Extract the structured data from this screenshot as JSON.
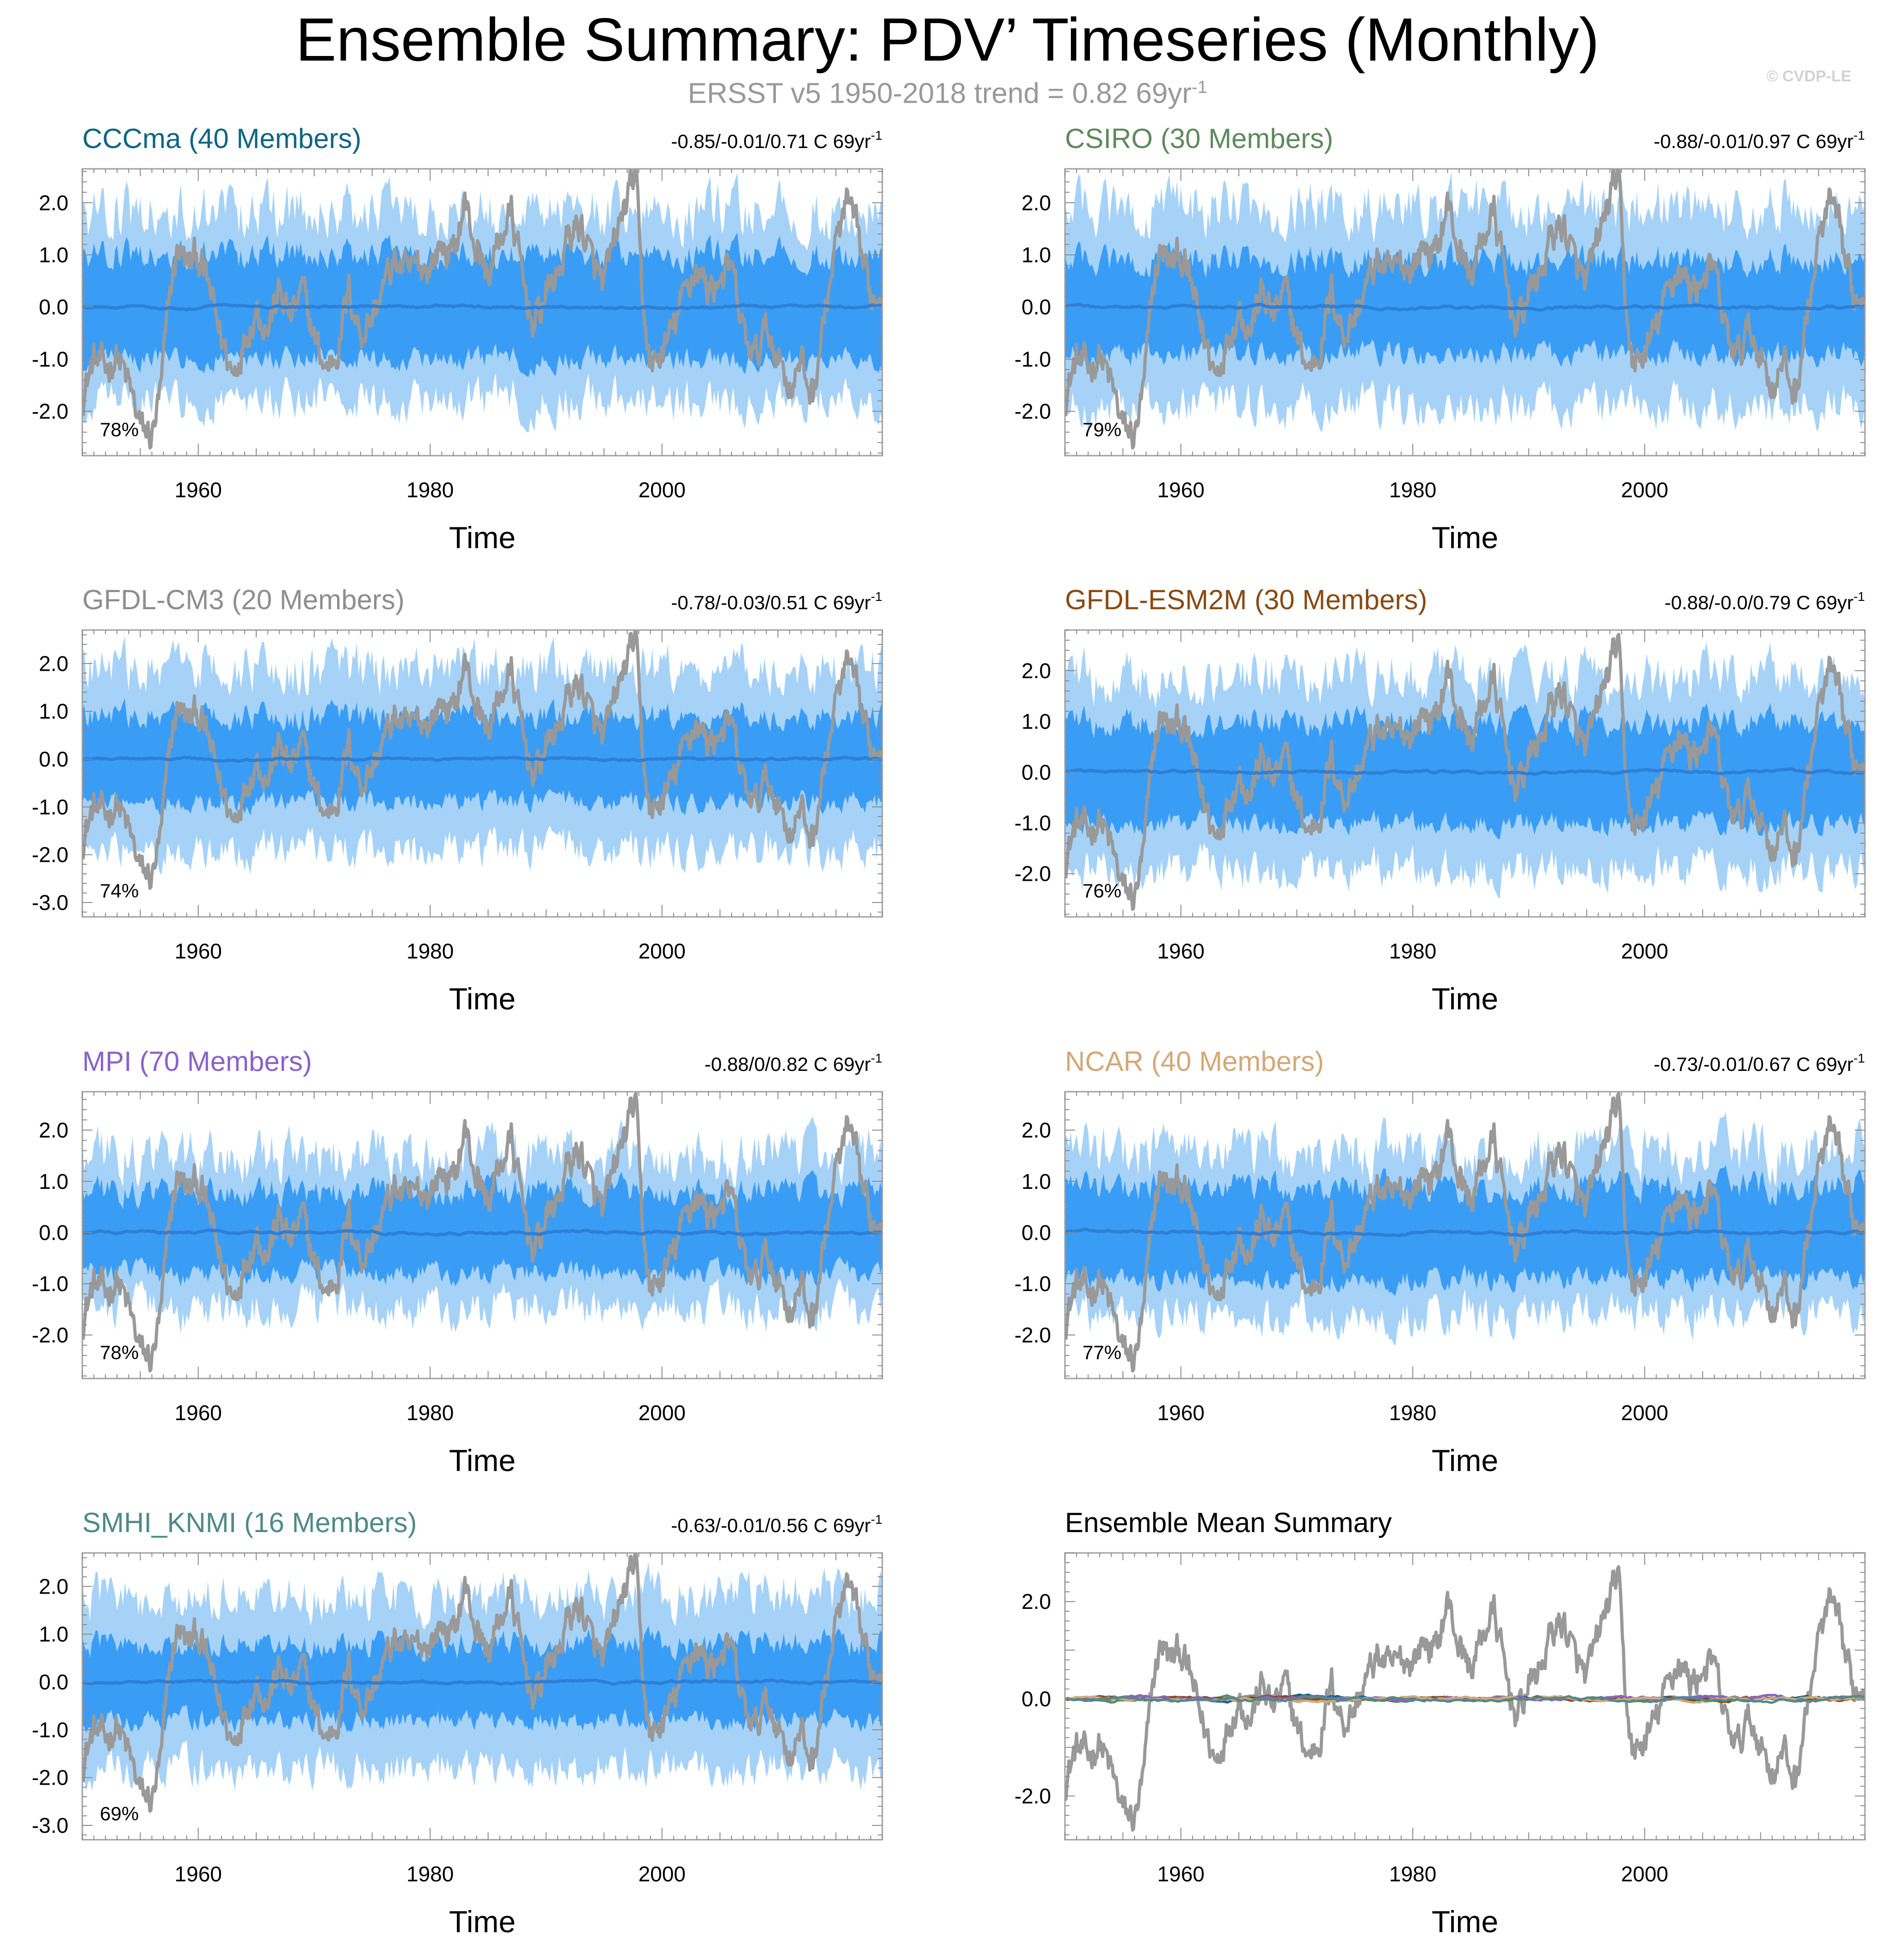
{
  "title": "Ensemble Summary: PDV’ Timeseries (Monthly)",
  "subtitle": {
    "text": "ERSST v5 1950-2018 trend = 0.82 69yr",
    "sup": "-1"
  },
  "copyright": "© CVDP-LE",
  "colors": {
    "observations": "#999999",
    "band_outer": "#a6d2f7",
    "band_inner": "#3a9df5",
    "ensemble_mean": "#2f7fd6"
  },
  "chart_data": [
    {
      "type": "area",
      "name": "CCCma (40 Members)",
      "title_color": "#0e6682",
      "stats": "-0.85/-0.01/0.71 C 69yr",
      "stats_sup": "-1",
      "percent": "78%",
      "xlabel": "Time",
      "xlim": [
        1950,
        2019
      ],
      "ylim": [
        -2.85,
        2.65
      ],
      "xticks": [
        "1960",
        "1980",
        "2000"
      ],
      "yticks": [
        "2.0",
        "1.0",
        "0.0",
        "-1.0",
        "-2.0"
      ],
      "band_inner": [
        -1.0,
        1.0
      ],
      "band_outer": [
        -1.8,
        1.8
      ]
    },
    {
      "type": "area",
      "name": "CSIRO (30 Members)",
      "title_color": "#5e8a5e",
      "stats": "-0.88/-0.01/0.97 C 69yr",
      "stats_sup": "-1",
      "percent": "79%",
      "xlabel": "Time",
      "xlim": [
        1950,
        2019
      ],
      "ylim": [
        -2.85,
        2.65
      ],
      "xticks": [
        "1960",
        "1980",
        "2000"
      ],
      "yticks": [
        "2.0",
        "1.0",
        "0.0",
        "-1.0",
        "-2.0"
      ],
      "band_inner": [
        -0.9,
        0.9
      ],
      "band_outer": [
        -1.9,
        1.9
      ]
    },
    {
      "type": "area",
      "name": "GFDL-CM3 (20 Members)",
      "title_color": "#8e8e8e",
      "stats": "-0.78/-0.03/0.51 C 69yr",
      "stats_sup": "-1",
      "percent": "74%",
      "xlabel": "Time",
      "xlim": [
        1950,
        2019
      ],
      "ylim": [
        -3.3,
        2.7
      ],
      "xticks": [
        "1960",
        "1980",
        "2000"
      ],
      "yticks": [
        "2.0",
        "1.0",
        "0.0",
        "-1.0",
        "-2.0",
        "-3.0"
      ],
      "band_inner": [
        -0.9,
        0.9
      ],
      "band_outer": [
        -1.9,
        1.9
      ]
    },
    {
      "type": "area",
      "name": "GFDL-ESM2M (30 Members)",
      "title_color": "#8a4a12",
      "stats": "-0.88/-0.0/0.79 C 69yr",
      "stats_sup": "-1",
      "percent": "76%",
      "xlabel": "Time",
      "xlim": [
        1950,
        2019
      ],
      "ylim": [
        -2.85,
        2.8
      ],
      "xticks": [
        "1960",
        "1980",
        "2000"
      ],
      "yticks": [
        "2.0",
        "1.0",
        "0.0",
        "-1.0",
        "-2.0"
      ],
      "band_inner": [
        -1.0,
        1.0
      ],
      "band_outer": [
        -1.9,
        1.9
      ]
    },
    {
      "type": "area",
      "name": "MPI (70 Members)",
      "title_color": "#8a62c8",
      "stats": "-0.88/0/0.82 C 69yr",
      "stats_sup": "-1",
      "percent": "78%",
      "xlabel": "Time",
      "xlim": [
        1950,
        2019
      ],
      "ylim": [
        -2.85,
        2.75
      ],
      "xticks": [
        "1960",
        "1980",
        "2000"
      ],
      "yticks": [
        "2.0",
        "1.0",
        "0.0",
        "-1.0",
        "-2.0"
      ],
      "band_inner": [
        -0.8,
        0.8
      ],
      "band_outer": [
        -1.5,
        1.5
      ]
    },
    {
      "type": "area",
      "name": "NCAR (40 Members)",
      "title_color": "#d4a878",
      "stats": "-0.73/-0.01/0.67 C 69yr",
      "stats_sup": "-1",
      "percent": "77%",
      "xlabel": "Time",
      "xlim": [
        1950,
        2019
      ],
      "ylim": [
        -2.85,
        2.75
      ],
      "xticks": [
        "1960",
        "1980",
        "2000"
      ],
      "yticks": [
        "2.0",
        "1.0",
        "0.0",
        "-1.0",
        "-2.0"
      ],
      "band_inner": [
        -0.9,
        0.9
      ],
      "band_outer": [
        -1.6,
        1.6
      ]
    },
    {
      "type": "area",
      "name": "SMHI_KNMI (16 Members)",
      "title_color": "#4f8a8a",
      "stats": "-0.63/-0.01/0.56 C 69yr",
      "stats_sup": "-1",
      "percent": "69%",
      "xlabel": "Time",
      "xlim": [
        1950,
        2019
      ],
      "ylim": [
        -3.3,
        2.7
      ],
      "xticks": [
        "1960",
        "1980",
        "2000"
      ],
      "yticks": [
        "2.0",
        "1.0",
        "0.0",
        "-1.0",
        "-2.0",
        "-3.0"
      ],
      "band_inner": [
        -0.8,
        0.8
      ],
      "band_outer": [
        -1.8,
        1.8
      ]
    },
    {
      "type": "line",
      "name": "Ensemble Mean Summary",
      "title_color": "#000000",
      "stats": "",
      "stats_sup": "",
      "percent": "",
      "xlabel": "Time",
      "xlim": [
        1950,
        2019
      ],
      "ylim": [
        -2.9,
        3.0
      ],
      "xticks": [
        "1960",
        "1980",
        "2000"
      ],
      "yticks": [
        "2.0",
        "0.0",
        "-2.0"
      ],
      "mean_colors": [
        "#0e6682",
        "#5e8a5e",
        "#8e8e8e",
        "#8a4a12",
        "#8a62c8",
        "#d4a878",
        "#4f8a8a"
      ]
    }
  ],
  "observed_pdv_anchors": {
    "x": [
      1950.0,
      1951.0,
      1952.0,
      1953.0,
      1954.0,
      1955.0,
      1956.0,
      1956.8,
      1957.5,
      1958.3,
      1959.0,
      1960.0,
      1961.0,
      1962.0,
      1963.0,
      1964.0,
      1965.0,
      1966.0,
      1967.0,
      1968.0,
      1969.0,
      1970.0,
      1971.0,
      1972.0,
      1973.0,
      1974.0,
      1975.0,
      1976.0,
      1977.0,
      1978.0,
      1979.0,
      1980.0,
      1981.0,
      1982.0,
      1983.0,
      1984.0,
      1985.0,
      1986.0,
      1987.0,
      1988.0,
      1989.0,
      1990.0,
      1991.0,
      1992.0,
      1993.0,
      1994.0,
      1995.0,
      1996.0,
      1997.0,
      1997.7,
      1998.3,
      1999.0,
      2000.0,
      2001.0,
      2002.0,
      2003.0,
      2004.0,
      2005.0,
      2006.0,
      2007.0,
      2008.0,
      2009.0,
      2010.0,
      2011.0,
      2012.0,
      2013.0,
      2014.0,
      2015.0,
      2016.0,
      2017.0,
      2018.0,
      2019.0
    ],
    "y": [
      -1.7,
      -1.0,
      -1.2,
      -0.9,
      -1.5,
      -2.3,
      -2.5,
      -1.6,
      0.2,
      1.2,
      0.8,
      1.0,
      0.3,
      -0.6,
      -1.3,
      -0.6,
      0.0,
      -0.4,
      0.3,
      -0.2,
      0.3,
      -0.6,
      -1.2,
      -0.8,
      0.3,
      -0.5,
      -0.2,
      0.4,
      0.9,
      0.6,
      0.8,
      0.8,
      1.2,
      1.0,
      2.0,
      1.1,
      0.6,
      1.3,
      1.8,
      0.5,
      -0.4,
      0.3,
      0.6,
      1.4,
      1.6,
      0.8,
      0.4,
      1.3,
      2.1,
      2.6,
      0.2,
      -1.2,
      -0.9,
      -0.4,
      0.3,
      0.8,
      0.3,
      0.6,
      0.7,
      -0.5,
      -1.0,
      -0.4,
      -0.9,
      -1.5,
      -1.1,
      -1.7,
      -0.2,
      1.2,
      2.0,
      1.2,
      0.2,
      0.3
    ]
  }
}
